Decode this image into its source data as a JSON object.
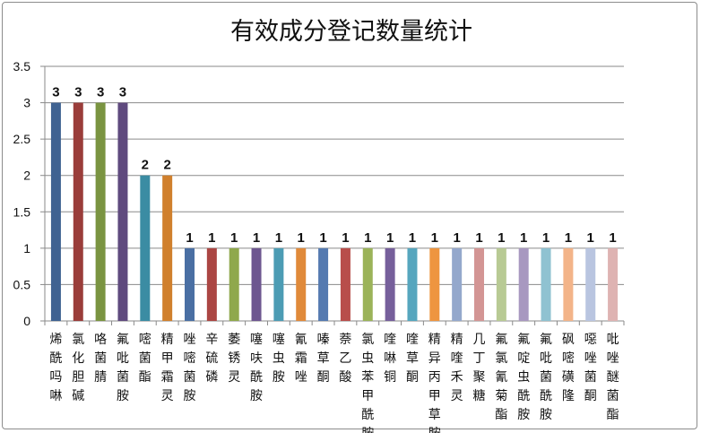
{
  "chart_data": {
    "type": "bar",
    "title": "有效成分登记数量统计",
    "xlabel": "",
    "ylabel": "",
    "ylim": [
      0,
      3.5
    ],
    "yticks": [
      "0",
      "0.5",
      "1",
      "1.5",
      "2",
      "2.5",
      "3",
      "3.5"
    ],
    "grid": true,
    "legend": "none",
    "categories": [
      "烯酰吗啉",
      "氯化胆碱",
      "咯菌腈",
      "氟吡菌胺",
      "嘧菌酯",
      "精甲霜灵",
      "唑嘧菌胺",
      "辛硫磷",
      "萎锈灵",
      "噻呋酰胺",
      "噻虫胺",
      "氰霜唑",
      "嗪草酮",
      "萘乙酸",
      "氯虫苯甲酰胺",
      "喹啉铜",
      "喹草酮",
      "精异丙甲草胺",
      "精喹禾灵",
      "几丁聚糖",
      "氟氯氰菊酯",
      "氟啶虫酰胺",
      "氟吡菌酰胺",
      "砜嘧磺隆",
      "噁唑菌酮",
      "吡唑醚菌酯"
    ],
    "values": [
      3,
      3,
      3,
      3,
      2,
      2,
      1,
      1,
      1,
      1,
      1,
      1,
      1,
      1,
      1,
      1,
      1,
      1,
      1,
      1,
      1,
      1,
      1,
      1,
      1,
      1
    ],
    "data_labels": [
      "3",
      "3",
      "3",
      "3",
      "2",
      "2",
      "1",
      "1",
      "1",
      "1",
      "1",
      "1",
      "1",
      "1",
      "1",
      "1",
      "1",
      "1",
      "1",
      "1",
      "1",
      "1",
      "1",
      "1",
      "1",
      "1"
    ],
    "colors": [
      "#3f6291",
      "#9a3d3a",
      "#7a9441",
      "#5f4a7e",
      "#3b8ca3",
      "#d0802d",
      "#4a6fa3",
      "#ab4643",
      "#8fa84c",
      "#6d5690",
      "#4c9cb4",
      "#e08a3a",
      "#557ab0",
      "#b84e4b",
      "#9bb359",
      "#765f9b",
      "#56a6be",
      "#ee9540",
      "#94a8cc",
      "#d39594",
      "#b8ca94",
      "#a898c0",
      "#8fc2d1",
      "#f3b489",
      "#b9c5e0",
      "#deb3b2"
    ]
  }
}
